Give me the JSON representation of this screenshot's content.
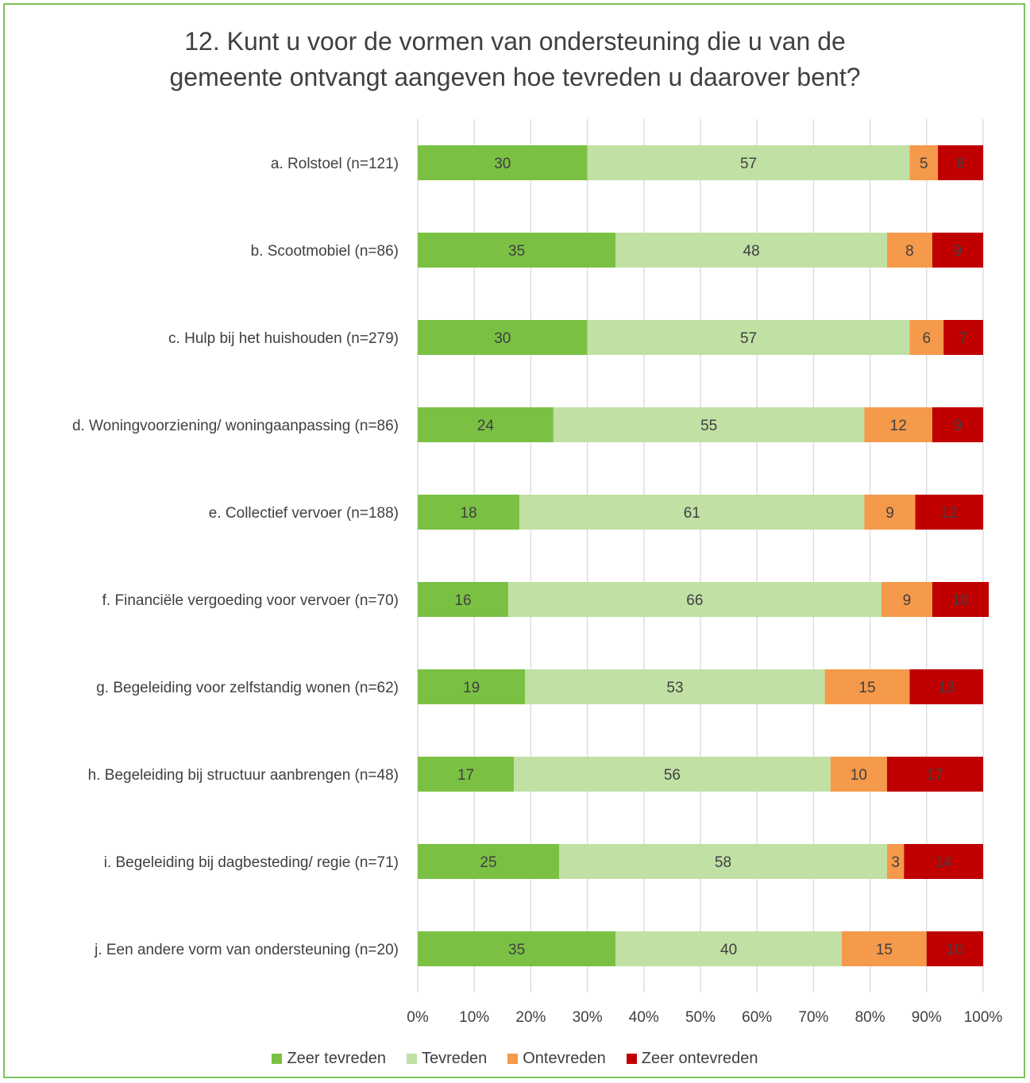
{
  "chart_data": {
    "type": "bar",
    "orientation": "horizontal",
    "stacked": true,
    "percent": true,
    "title_lines": [
      "12. Kunt u voor de vormen van ondersteuning die u van de",
      "gemeente ontvangt aangeven hoe tevreden u daarover bent?"
    ],
    "categories": [
      "a. Rolstoel (n=121)",
      "b. Scootmobiel (n=86)",
      "c. Hulp bij het huishouden (n=279)",
      "d. Woningvoorziening/ woningaanpassing (n=86)",
      "e. Collectief vervoer (n=188)",
      "f. Financiële vergoeding voor vervoer (n=70)",
      "g. Begeleiding voor zelfstandig wonen (n=62)",
      "h. Begeleiding bij structuur aanbrengen (n=48)",
      "i. Begeleiding bij  dagbesteding/ regie (n=71)",
      "j. Een andere vorm van ondersteuning (n=20)"
    ],
    "series": [
      {
        "name": "Zeer tevreden",
        "color": "#7ac143",
        "values": [
          30,
          35,
          30,
          24,
          18,
          16,
          19,
          17,
          25,
          35
        ]
      },
      {
        "name": "Tevreden",
        "color": "#c1e0a4",
        "values": [
          57,
          48,
          57,
          55,
          61,
          66,
          53,
          56,
          58,
          40
        ]
      },
      {
        "name": "Ontevreden",
        "color": "#f5994a",
        "values": [
          5,
          8,
          6,
          12,
          9,
          9,
          15,
          10,
          3,
          15
        ]
      },
      {
        "name": "Zeer ontevreden",
        "color": "#c00000",
        "values": [
          8,
          9,
          7,
          9,
          12,
          10,
          13,
          17,
          14,
          10
        ]
      }
    ],
    "x_ticks": [
      "0%",
      "10%",
      "20%",
      "30%",
      "40%",
      "50%",
      "60%",
      "70%",
      "80%",
      "90%",
      "100%"
    ],
    "xlim": [
      0,
      100
    ],
    "grid": true,
    "legend_position": "bottom",
    "label_color": "#404040",
    "frame_color": "#7dc25b"
  }
}
